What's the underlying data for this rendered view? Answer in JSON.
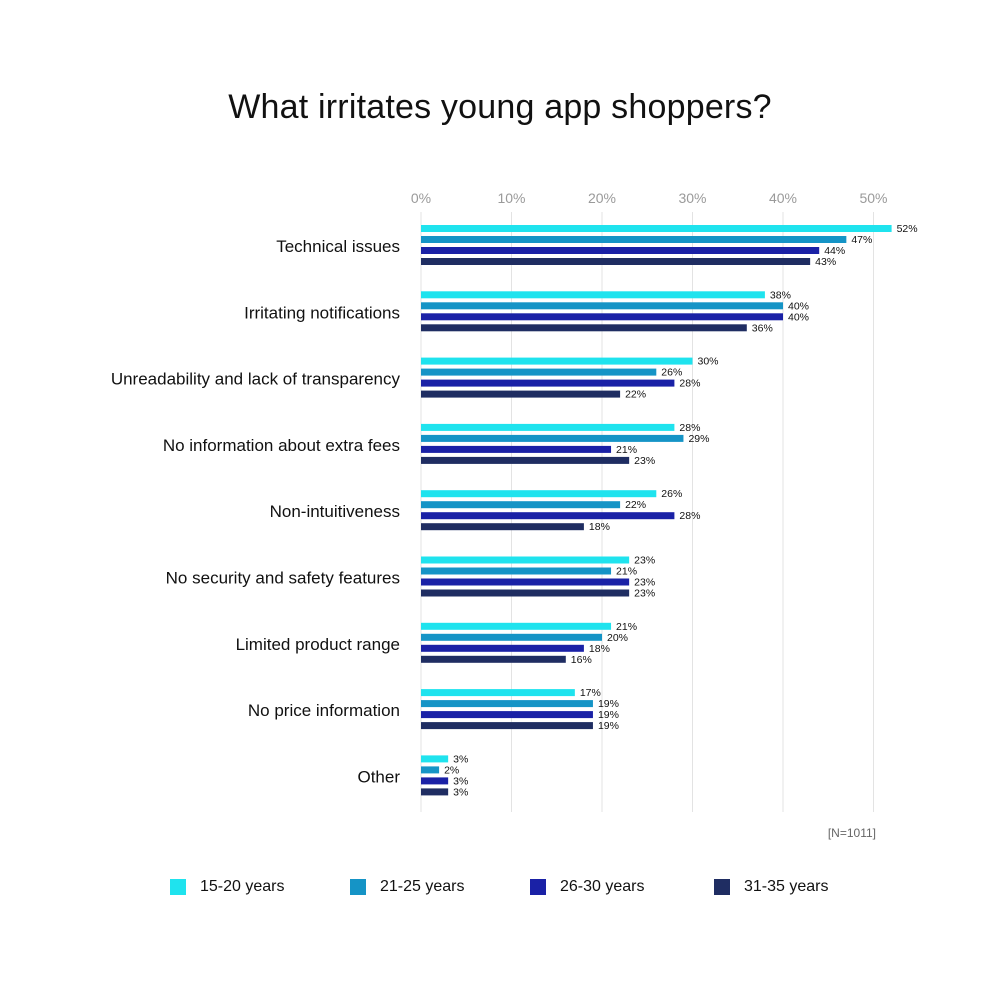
{
  "chart_data": {
    "type": "bar",
    "orientation": "horizontal",
    "title": "What irritates young app shoppers?",
    "note": "[N=1011]",
    "xlim": [
      0,
      52
    ],
    "x_ticks": [
      0,
      10,
      20,
      30,
      40,
      50
    ],
    "x_tick_labels": [
      "0%",
      "10%",
      "20%",
      "30%",
      "40%",
      "50%"
    ],
    "grid": true,
    "legend_position": "bottom",
    "categories": [
      "Technical issues",
      "Irritating notifications",
      "Unreadability and lack of transparency",
      "No information about extra fees",
      "Non-intuitiveness",
      "No security and safety features",
      "Limited product range",
      "No price information",
      "Other"
    ],
    "series": [
      {
        "name": "15-20 years",
        "color": "#1fe3ee",
        "values": [
          52,
          38,
          30,
          28,
          26,
          23,
          21,
          17,
          3
        ]
      },
      {
        "name": "21-25 years",
        "color": "#1594c6",
        "values": [
          47,
          40,
          26,
          29,
          22,
          21,
          20,
          19,
          2
        ]
      },
      {
        "name": "26-30 years",
        "color": "#1a21a6",
        "values": [
          44,
          40,
          28,
          21,
          28,
          23,
          18,
          19,
          3
        ]
      },
      {
        "name": "31-35 years",
        "color": "#1f2d62",
        "values": [
          43,
          36,
          22,
          23,
          18,
          23,
          16,
          19,
          3
        ]
      }
    ]
  }
}
